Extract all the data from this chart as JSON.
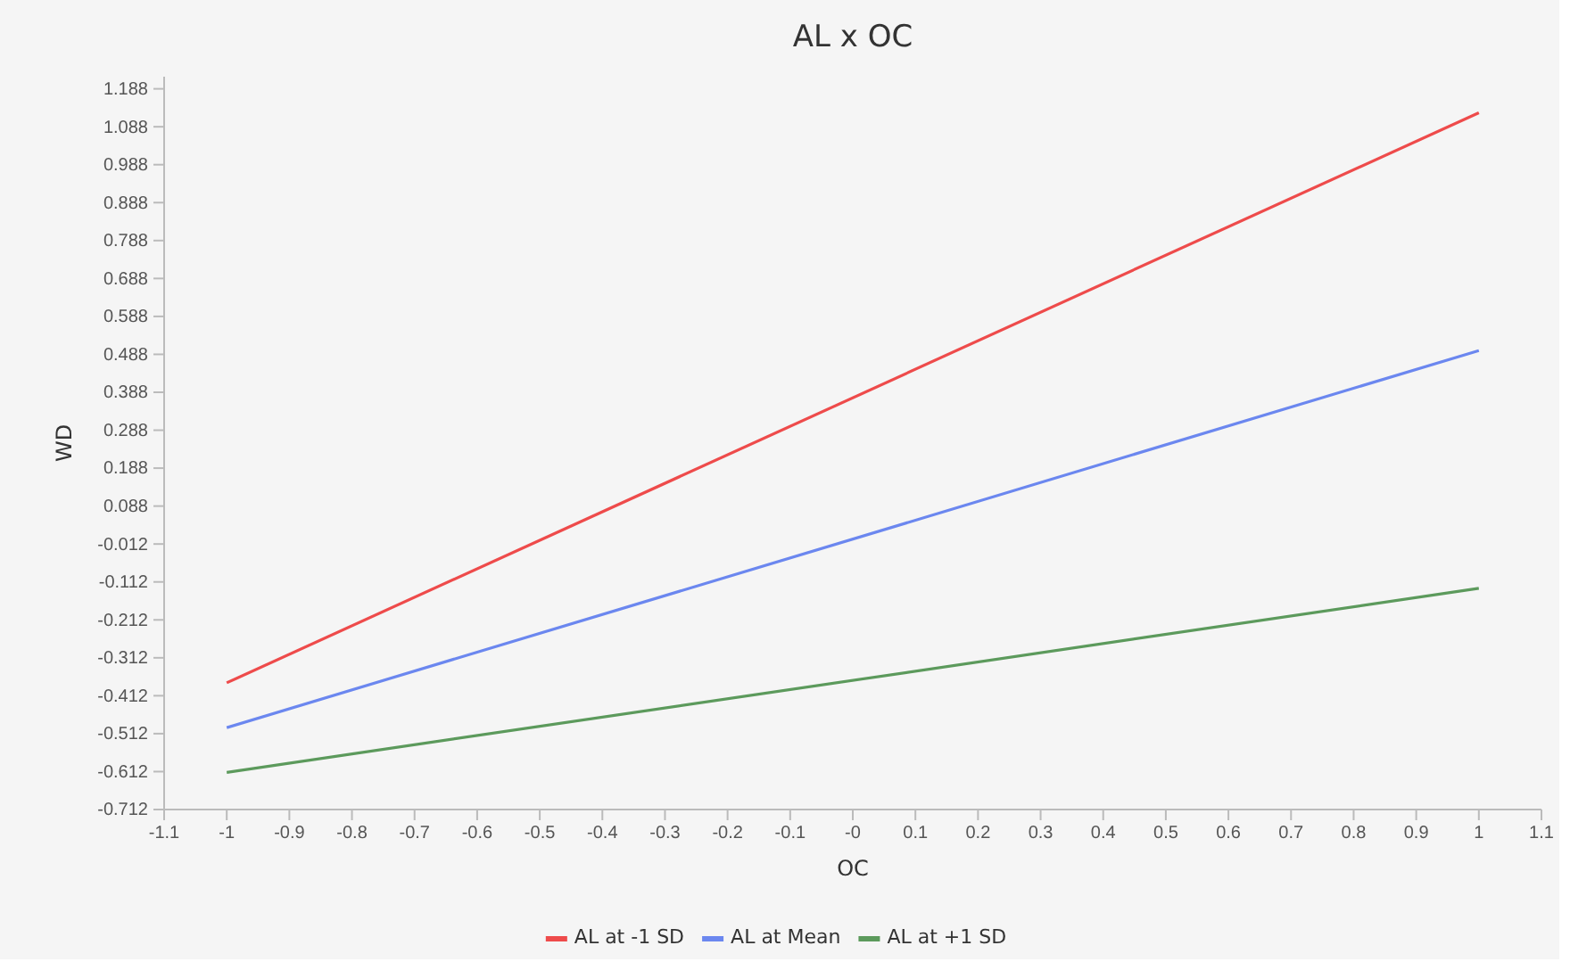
{
  "chart_data": {
    "type": "line",
    "title": "AL x OC",
    "xlabel": "OC",
    "ylabel": "WD",
    "xlim": [
      -1.1,
      1.1
    ],
    "xticks": [
      -1.1,
      -1,
      -0.9,
      -0.8,
      -0.7,
      -0.6,
      -0.5,
      -0.4,
      -0.3,
      -0.2,
      -0.1,
      {
        "value": 0,
        "label": "-0"
      },
      0.1,
      0.2,
      0.3,
      0.4,
      0.5,
      0.6,
      0.7,
      0.8,
      0.9,
      1,
      1.1
    ],
    "ylim": [
      -0.712,
      1.22
    ],
    "yticks": [
      -0.712,
      -0.612,
      -0.512,
      -0.412,
      -0.312,
      -0.212,
      -0.112,
      -0.012,
      0.088,
      0.188,
      0.288,
      0.388,
      0.488,
      0.588,
      0.688,
      0.788,
      0.888,
      0.988,
      1.088,
      1.188
    ],
    "grid": false,
    "legend": "bottom",
    "marker": "none",
    "line_style": "solid",
    "x": [
      -1,
      1
    ],
    "series": [
      {
        "name": "AL at -1 SD",
        "color": "#ee4b4b",
        "values": [
          -0.378,
          1.125
        ]
      },
      {
        "name": "AL at Mean",
        "color": "#6b87ef",
        "values": [
          -0.496,
          0.498
        ]
      },
      {
        "name": "AL at +1 SD",
        "color": "#5c9a5c",
        "values": [
          -0.614,
          -0.129
        ]
      }
    ]
  }
}
